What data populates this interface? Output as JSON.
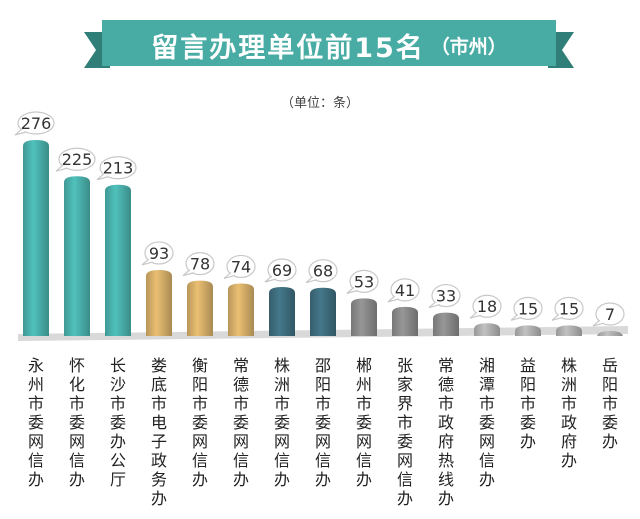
{
  "header": {
    "title": "留言办理单位前15名",
    "subtitle": "（市州）",
    "unit": "（单位：条）"
  },
  "colors": {
    "banner": "#48ACA5",
    "banner_dark": "#2F7F78",
    "teal": "#4BB3AE",
    "gold": "#D9B16A",
    "navy": "#3F6F80",
    "gray": "#8C8C8C",
    "light_gray": "#B3B3B3"
  },
  "chart_data": {
    "type": "bar",
    "categories": [
      "永州市委网信办",
      "怀化市委网信办",
      "长沙市委办公厅",
      "娄底市电子政务办",
      "衡阳市委网信办",
      "常德市委网信办",
      "株洲市委网信办",
      "邵阳市委网信办",
      "郴州市委网信办",
      "张家界市委网信办",
      "常德市政府热线办",
      "湘潭市委网信办",
      "益阳市委办",
      "株洲市政府办",
      "岳阳市委办"
    ],
    "values": [
      276,
      225,
      213,
      93,
      78,
      74,
      69,
      68,
      53,
      41,
      33,
      18,
      15,
      15,
      7
    ],
    "bar_colors": [
      "teal",
      "teal",
      "teal",
      "gold",
      "gold",
      "gold",
      "navy",
      "navy",
      "gray",
      "gray",
      "gray",
      "light_gray",
      "light_gray",
      "light_gray",
      "light_gray"
    ],
    "title": "",
    "xlabel": "",
    "ylabel": ""
  }
}
